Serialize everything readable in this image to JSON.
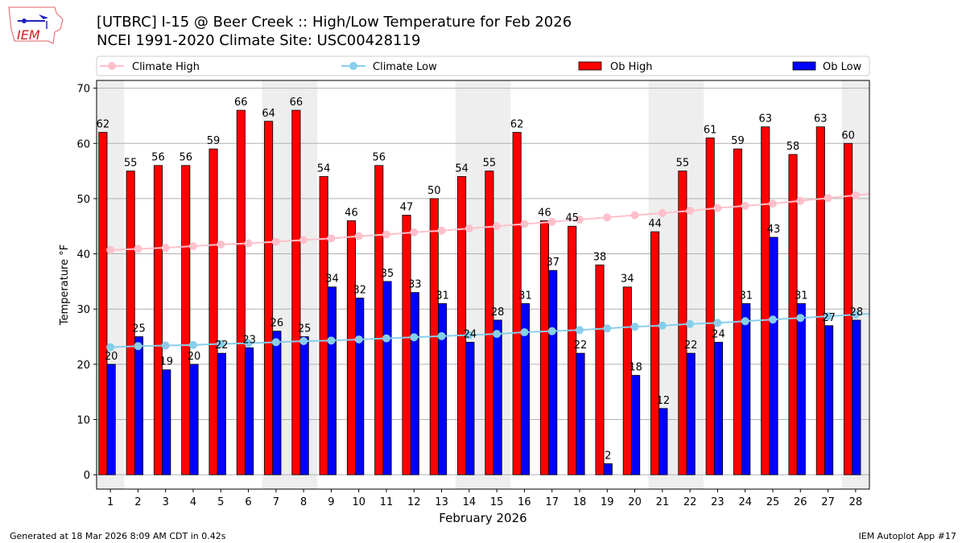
{
  "header": {
    "title_line1": "[UTBRC] I-15 @ Beer Creek  :: High/Low Temperature for Feb 2026",
    "title_line2": "NCEI 1991-2020 Climate Site: USC00428119",
    "logo_text": "IEM"
  },
  "footer": {
    "generated": "Generated at 18 Mar 2026 8:09 AM CDT in 0.42s",
    "app": "IEM Autoplot App #17"
  },
  "colors": {
    "ob_high": "#ff0000",
    "ob_low": "#0000ff",
    "climate_high": "#ffc0cb",
    "climate_low": "#87ceeb",
    "weekend_band": "#eeeeee"
  },
  "chart_data": {
    "type": "bar",
    "xlabel": "February 2026",
    "ylabel": "Temperature °F",
    "xlim": [
      0.5,
      28.5
    ],
    "ylim": [
      -2.6,
      71.4
    ],
    "yticks": [
      0,
      10,
      20,
      30,
      40,
      50,
      60,
      70
    ],
    "grid": "horizontal",
    "legend_placement": "top",
    "shaded_days": [
      1,
      7,
      8,
      14,
      15,
      21,
      22,
      28
    ],
    "x": [
      1,
      2,
      3,
      4,
      5,
      6,
      7,
      8,
      9,
      10,
      11,
      12,
      13,
      14,
      15,
      16,
      17,
      18,
      19,
      20,
      21,
      22,
      23,
      24,
      25,
      26,
      27,
      28
    ],
    "series": [
      {
        "name": "Climate High",
        "type": "line",
        "values": [
          40.7,
          40.9,
          41.1,
          41.4,
          41.7,
          41.9,
          42.2,
          42.5,
          42.8,
          43.2,
          43.5,
          43.9,
          44.2,
          44.6,
          45.0,
          45.4,
          45.8,
          46.2,
          46.6,
          47.0,
          47.4,
          47.8,
          48.3,
          48.7,
          49.1,
          49.6,
          50.1,
          50.6
        ]
      },
      {
        "name": "Climate Low",
        "type": "line",
        "values": [
          23.1,
          23.3,
          23.4,
          23.5,
          23.7,
          23.8,
          24.0,
          24.2,
          24.3,
          24.5,
          24.7,
          24.9,
          25.1,
          25.3,
          25.5,
          25.8,
          26.0,
          26.2,
          26.5,
          26.8,
          27.0,
          27.3,
          27.5,
          27.8,
          28.1,
          28.4,
          28.7,
          29.0
        ]
      },
      {
        "name": "Ob High",
        "type": "bar",
        "values": [
          62,
          55,
          56,
          56,
          59,
          66,
          64,
          66,
          54,
          46,
          56,
          47,
          50,
          54,
          55,
          62,
          46,
          45,
          38,
          34,
          44,
          55,
          61,
          59,
          63,
          58,
          63,
          60
        ]
      },
      {
        "name": "Ob Low",
        "type": "bar",
        "values": [
          20,
          25,
          19,
          20,
          22,
          23,
          26,
          25,
          34,
          32,
          35,
          33,
          31,
          24,
          28,
          31,
          37,
          22,
          2,
          18,
          12,
          22,
          24,
          31,
          43,
          31,
          27,
          28
        ]
      }
    ]
  }
}
